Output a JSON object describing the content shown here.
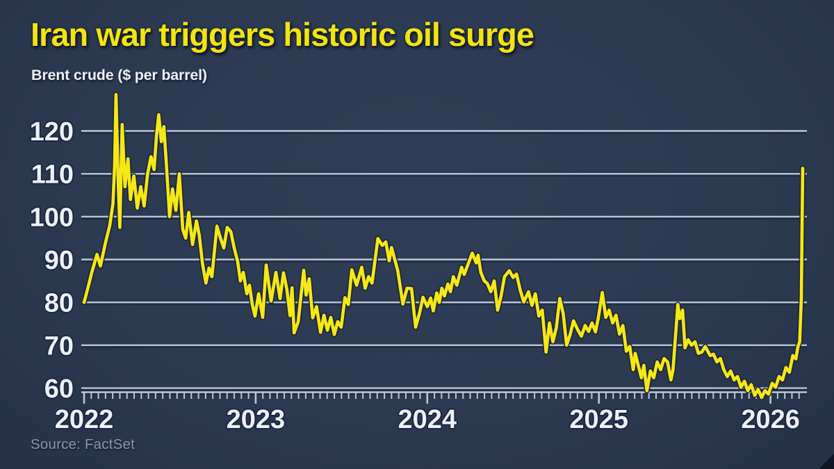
{
  "header": {
    "title": "Iran war triggers historic oil surge",
    "subtitle": "Brent crude ($ per barrel)"
  },
  "footer": {
    "source": "Source: FactSet"
  },
  "colors": {
    "background": "#2c3a52",
    "title_text": "#f2e40e",
    "subtitle_text": "#eef2f8",
    "axis_text": "#edf1f7",
    "source_text": "#8b96a7",
    "grid_line": "#bcc8d7",
    "grid_shadow": "#1d2940",
    "line": "#f5e814",
    "line_halo": "#1b2438",
    "label_outline": "#1c2842",
    "corner_mark": "#0e1320"
  },
  "chart_data": {
    "type": "line",
    "title": "Iran war triggers historic oil surge",
    "xlabel": "",
    "ylabel": "Brent crude ($ per barrel)",
    "x_unit": "decimal year",
    "xlim": [
      2022.0,
      2026.21
    ],
    "ylim": [
      56,
      130
    ],
    "grid": "horizontal",
    "legend": "none",
    "xticks": {
      "values": [
        2022,
        2023,
        2024,
        2025,
        2026
      ],
      "labels": [
        "2022",
        "2023",
        "2024",
        "2025",
        "2026"
      ]
    },
    "yticks": {
      "values": [
        60,
        70,
        80,
        90,
        100,
        110,
        120
      ],
      "labels": [
        "60",
        "70",
        "80",
        "90",
        "100",
        "110",
        "120"
      ]
    },
    "series": [
      {
        "name": "Brent crude ($ per barrel)",
        "color": "#f5e814",
        "points": [
          [
            2022.0,
            80.0
          ],
          [
            2022.02,
            83.0
          ],
          [
            2022.045,
            87.0
          ],
          [
            2022.075,
            91.2
          ],
          [
            2022.095,
            88.5
          ],
          [
            2022.125,
            94.0
          ],
          [
            2022.15,
            98.0
          ],
          [
            2022.168,
            103.0
          ],
          [
            2022.178,
            112.0
          ],
          [
            2022.186,
            128.5
          ],
          [
            2022.198,
            109.0
          ],
          [
            2022.208,
            97.5
          ],
          [
            2022.222,
            121.5
          ],
          [
            2022.238,
            107.0
          ],
          [
            2022.256,
            113.5
          ],
          [
            2022.27,
            104.0
          ],
          [
            2022.29,
            109.5
          ],
          [
            2022.31,
            102.0
          ],
          [
            2022.33,
            107.0
          ],
          [
            2022.35,
            102.5
          ],
          [
            2022.37,
            110.0
          ],
          [
            2022.39,
            114.0
          ],
          [
            2022.408,
            111.0
          ],
          [
            2022.422,
            119.0
          ],
          [
            2022.435,
            123.8
          ],
          [
            2022.45,
            117.5
          ],
          [
            2022.465,
            121.0
          ],
          [
            2022.48,
            112.0
          ],
          [
            2022.498,
            100.0
          ],
          [
            2022.515,
            106.5
          ],
          [
            2022.535,
            101.5
          ],
          [
            2022.555,
            110.0
          ],
          [
            2022.575,
            97.0
          ],
          [
            2022.592,
            95.0
          ],
          [
            2022.61,
            101.0
          ],
          [
            2022.632,
            93.5
          ],
          [
            2022.655,
            99.0
          ],
          [
            2022.672,
            95.5
          ],
          [
            2022.69,
            89.0
          ],
          [
            2022.71,
            84.5
          ],
          [
            2022.728,
            88.0
          ],
          [
            2022.745,
            86.0
          ],
          [
            2022.774,
            97.8
          ],
          [
            2022.794,
            95.1
          ],
          [
            2022.814,
            92.7
          ],
          [
            2022.834,
            97.5
          ],
          [
            2022.855,
            96.5
          ],
          [
            2022.875,
            92.7
          ],
          [
            2022.895,
            89.5
          ],
          [
            2022.911,
            85.0
          ],
          [
            2022.928,
            87.0
          ],
          [
            2022.948,
            82.0
          ],
          [
            2022.964,
            84.0
          ],
          [
            2022.98,
            79.5
          ],
          [
            2022.996,
            76.8
          ],
          [
            2023.017,
            82.0
          ],
          [
            2023.041,
            76.5
          ],
          [
            2023.061,
            88.7
          ],
          [
            2023.09,
            80.3
          ],
          [
            2023.118,
            87.0
          ],
          [
            2023.142,
            80.9
          ],
          [
            2023.162,
            86.9
          ],
          [
            2023.182,
            83.0
          ],
          [
            2023.2,
            76.9
          ],
          [
            2023.212,
            83.4
          ],
          [
            2023.224,
            72.9
          ],
          [
            2023.248,
            75.5
          ],
          [
            2023.28,
            87.5
          ],
          [
            2023.294,
            81.7
          ],
          [
            2023.312,
            85.5
          ],
          [
            2023.332,
            76.4
          ],
          [
            2023.355,
            79.0
          ],
          [
            2023.378,
            73.0
          ],
          [
            2023.398,
            77.0
          ],
          [
            2023.418,
            73.5
          ],
          [
            2023.438,
            76.5
          ],
          [
            2023.458,
            72.5
          ],
          [
            2023.478,
            75.5
          ],
          [
            2023.498,
            74.2
          ],
          [
            2023.52,
            81.1
          ],
          [
            2023.54,
            79.5
          ],
          [
            2023.56,
            87.6
          ],
          [
            2023.588,
            84.0
          ],
          [
            2023.618,
            88.2
          ],
          [
            2023.638,
            83.3
          ],
          [
            2023.658,
            86.0
          ],
          [
            2023.678,
            84.5
          ],
          [
            2023.712,
            94.9
          ],
          [
            2023.738,
            93.3
          ],
          [
            2023.758,
            94.1
          ],
          [
            2023.778,
            89.7
          ],
          [
            2023.792,
            92.8
          ],
          [
            2023.828,
            87.4
          ],
          [
            2023.858,
            79.6
          ],
          [
            2023.882,
            83.3
          ],
          [
            2023.908,
            83.2
          ],
          [
            2023.932,
            74.2
          ],
          [
            2023.955,
            77.5
          ],
          [
            2023.975,
            81.2
          ],
          [
            2024.0,
            79.0
          ],
          [
            2024.02,
            81.0
          ],
          [
            2024.035,
            78.0
          ],
          [
            2024.055,
            82.2
          ],
          [
            2024.07,
            80.0
          ],
          [
            2024.085,
            83.3
          ],
          [
            2024.1,
            81.5
          ],
          [
            2024.12,
            84.3
          ],
          [
            2024.135,
            82.5
          ],
          [
            2024.152,
            86.0
          ],
          [
            2024.172,
            84.0
          ],
          [
            2024.2,
            88.2
          ],
          [
            2024.215,
            86.5
          ],
          [
            2024.262,
            91.5
          ],
          [
            2024.285,
            89.2
          ],
          [
            2024.296,
            91.0
          ],
          [
            2024.312,
            87.0
          ],
          [
            2024.332,
            85.0
          ],
          [
            2024.35,
            84.4
          ],
          [
            2024.37,
            82.5
          ],
          [
            2024.39,
            85.0
          ],
          [
            2024.41,
            78.2
          ],
          [
            2024.43,
            81.5
          ],
          [
            2024.45,
            86.0
          ],
          [
            2024.478,
            87.4
          ],
          [
            2024.5,
            85.8
          ],
          [
            2024.52,
            86.6
          ],
          [
            2024.542,
            82.8
          ],
          [
            2024.562,
            80.1
          ],
          [
            2024.59,
            82.5
          ],
          [
            2024.61,
            79.3
          ],
          [
            2024.63,
            82.0
          ],
          [
            2024.65,
            76.8
          ],
          [
            2024.67,
            78.2
          ],
          [
            2024.692,
            68.4
          ],
          [
            2024.712,
            75.2
          ],
          [
            2024.732,
            70.8
          ],
          [
            2024.752,
            74.1
          ],
          [
            2024.772,
            80.9
          ],
          [
            2024.792,
            77.5
          ],
          [
            2024.812,
            70.0
          ],
          [
            2024.832,
            72.4
          ],
          [
            2024.852,
            75.7
          ],
          [
            2024.878,
            73.5
          ],
          [
            2024.898,
            72.1
          ],
          [
            2024.92,
            74.6
          ],
          [
            2024.94,
            73.2
          ],
          [
            2024.96,
            75.2
          ],
          [
            2024.98,
            73.1
          ],
          [
            2024.996,
            76.2
          ],
          [
            2025.02,
            82.3
          ],
          [
            2025.04,
            76.5
          ],
          [
            2025.06,
            78.2
          ],
          [
            2025.08,
            75.2
          ],
          [
            2025.1,
            77.0
          ],
          [
            2025.12,
            72.6
          ],
          [
            2025.14,
            74.6
          ],
          [
            2025.16,
            68.6
          ],
          [
            2025.18,
            69.7
          ],
          [
            2025.2,
            64.3
          ],
          [
            2025.212,
            68.1
          ],
          [
            2025.248,
            62.4
          ],
          [
            2025.262,
            65.3
          ],
          [
            2025.28,
            59.4
          ],
          [
            2025.3,
            64.0
          ],
          [
            2025.32,
            62.4
          ],
          [
            2025.34,
            66.1
          ],
          [
            2025.36,
            64.3
          ],
          [
            2025.38,
            66.9
          ],
          [
            2025.4,
            66.1
          ],
          [
            2025.42,
            61.9
          ],
          [
            2025.432,
            64.3
          ],
          [
            2025.46,
            79.5
          ],
          [
            2025.472,
            76.2
          ],
          [
            2025.488,
            78.2
          ],
          [
            2025.502,
            69.4
          ],
          [
            2025.52,
            71.3
          ],
          [
            2025.54,
            70.0
          ],
          [
            2025.56,
            70.8
          ],
          [
            2025.58,
            68.1
          ],
          [
            2025.6,
            68.4
          ],
          [
            2025.62,
            69.7
          ],
          [
            2025.648,
            67.6
          ],
          [
            2025.668,
            67.9
          ],
          [
            2025.688,
            66.1
          ],
          [
            2025.708,
            66.9
          ],
          [
            2025.728,
            64.3
          ],
          [
            2025.748,
            62.7
          ],
          [
            2025.768,
            64.0
          ],
          [
            2025.788,
            61.9
          ],
          [
            2025.808,
            62.7
          ],
          [
            2025.828,
            60.2
          ],
          [
            2025.848,
            61.6
          ],
          [
            2025.868,
            59.4
          ],
          [
            2025.888,
            60.8
          ],
          [
            2025.908,
            58.3
          ],
          [
            2025.928,
            59.7
          ],
          [
            2025.948,
            57.8
          ],
          [
            2025.968,
            59.4
          ],
          [
            2025.988,
            58.6
          ],
          [
            2026.01,
            61.1
          ],
          [
            2026.03,
            60.2
          ],
          [
            2026.05,
            62.7
          ],
          [
            2026.07,
            61.9
          ],
          [
            2026.09,
            64.8
          ],
          [
            2026.11,
            63.7
          ],
          [
            2026.13,
            67.6
          ],
          [
            2026.148,
            66.8
          ],
          [
            2026.16,
            69.7
          ],
          [
            2026.17,
            70.8
          ],
          [
            2026.18,
            81.0
          ],
          [
            2026.184,
            97.0
          ],
          [
            2026.188,
            111.3
          ]
        ]
      }
    ]
  }
}
